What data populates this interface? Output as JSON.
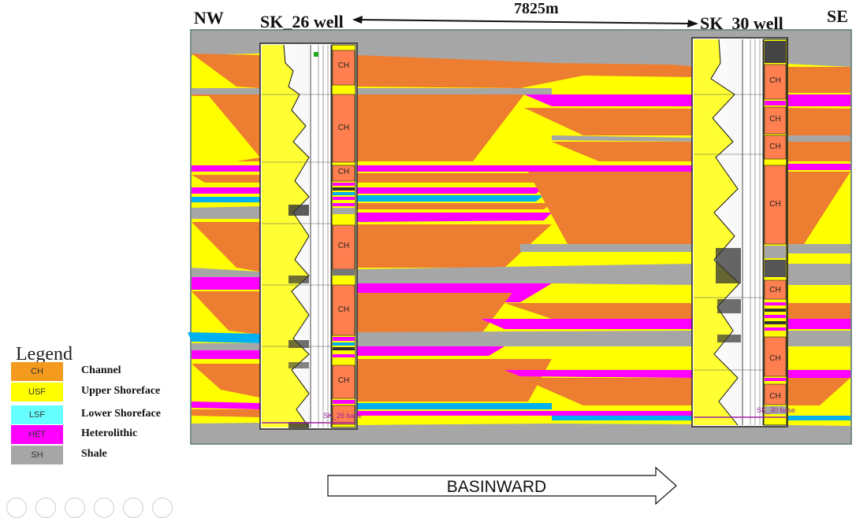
{
  "header": {
    "nw": "NW",
    "se": "SE",
    "left_well": "SK_26 well",
    "right_well": "SK_30 well",
    "distance": "7825m"
  },
  "wells": {
    "left": {
      "units": [
        "CH",
        "CH",
        "CH",
        "CH",
        "CH",
        "CH"
      ],
      "base_label": "SK_26 base"
    },
    "right": {
      "units": [
        "CH",
        "CH",
        "CH",
        "CH",
        "CH",
        "CH",
        "CH"
      ],
      "base_label": "SK_30 base"
    }
  },
  "legend": {
    "title": "Legend",
    "items": [
      {
        "code": "CH",
        "label": "Channel",
        "color": "#f39a1f"
      },
      {
        "code": "USF",
        "label": "Upper Shoreface",
        "color": "#ffff00"
      },
      {
        "code": "LSF",
        "label": "Lower Shoreface",
        "color": "#66ffff"
      },
      {
        "code": "HET",
        "label": "Heterolithic",
        "color": "#ff00ff"
      },
      {
        "code": "SH",
        "label": "Shale",
        "color": "#a6a6a6"
      }
    ]
  },
  "direction_arrow": {
    "label": "BASINWARD"
  },
  "colors": {
    "channel": "#ed7d31",
    "upper_shoreface": "#ffff00",
    "lower_shoreface": "#00b0f0",
    "heterolithic": "#ff00ff",
    "shale": "#a6a6a6",
    "log_fill": "#ffff33",
    "core_channel": "#ff7f50"
  }
}
